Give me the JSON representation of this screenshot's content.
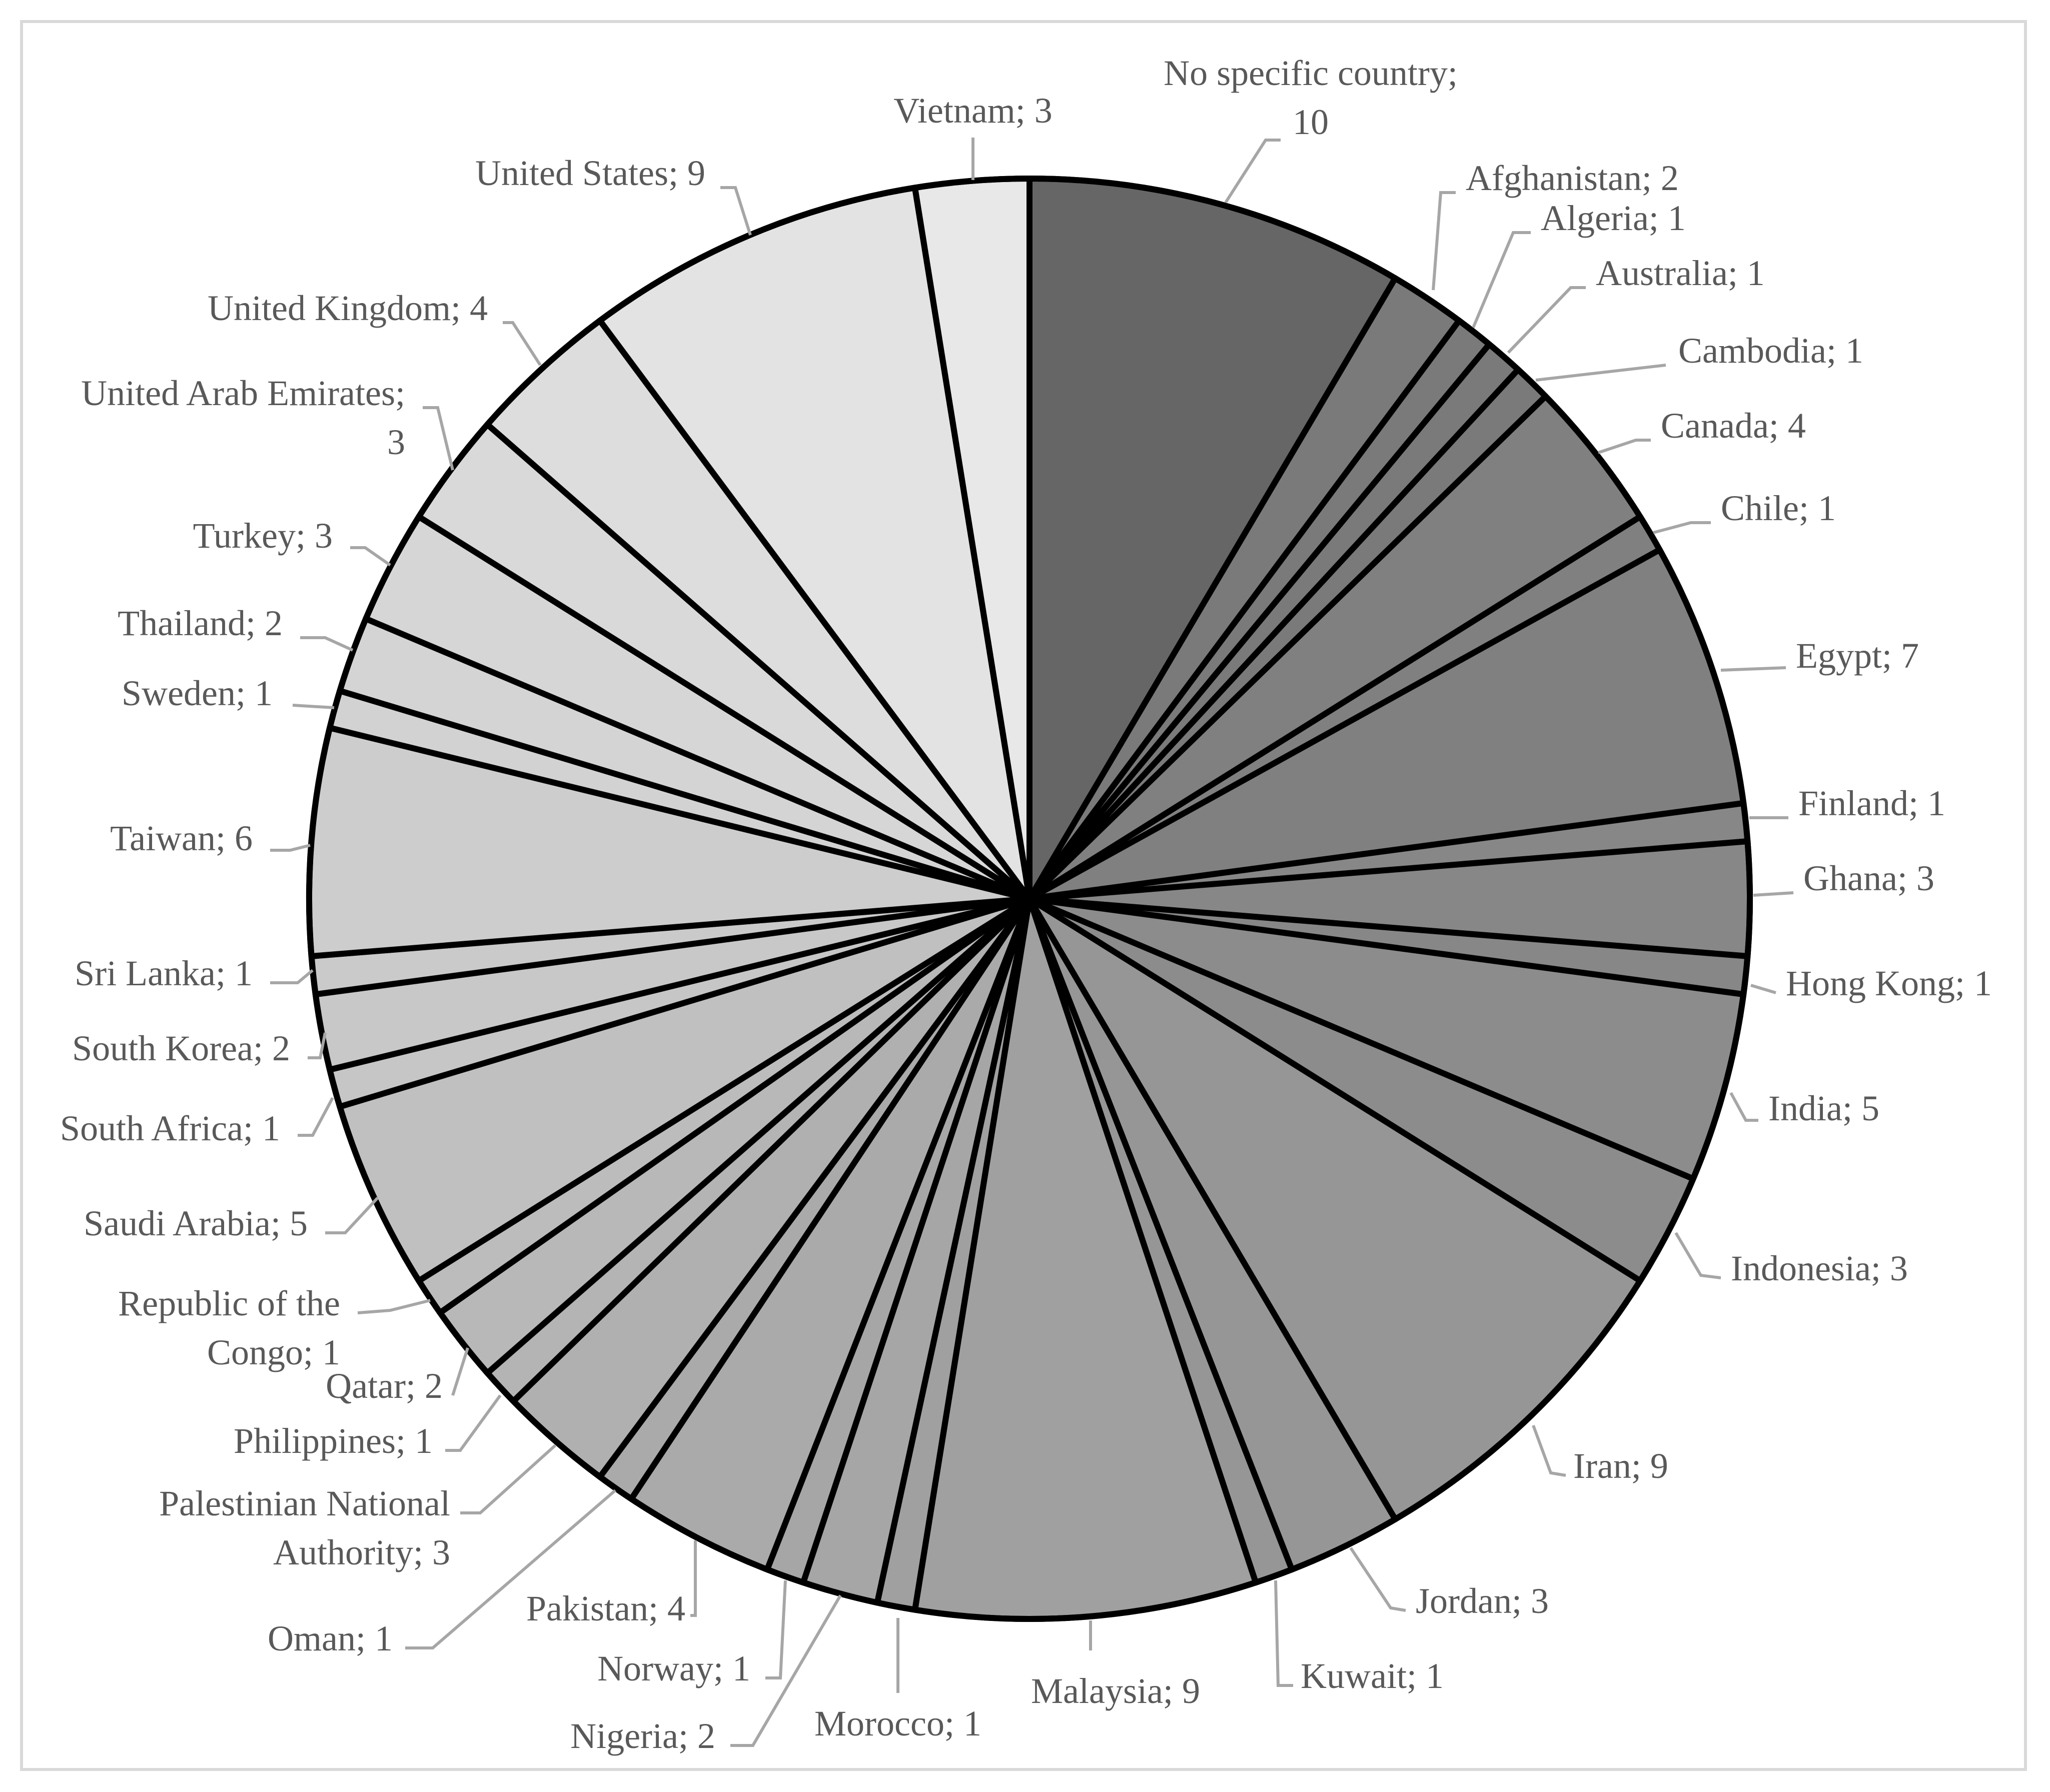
{
  "chart_data": {
    "type": "pie",
    "title": "",
    "start_angle": "12 o'clock, clockwise",
    "slices": [
      {
        "label": "No specific country",
        "value": 10,
        "color": "#666666",
        "text": [
          "No specific country;",
          "10"
        ]
      },
      {
        "label": "Afghanistan",
        "value": 2,
        "color": "#7a7a7a",
        "text": [
          "Afghanistan; 2"
        ]
      },
      {
        "label": "Algeria",
        "value": 1,
        "color": "#7a7a7a",
        "text": [
          "Algeria; 1"
        ]
      },
      {
        "label": "Australia",
        "value": 1,
        "color": "#7a7a7a",
        "text": [
          "Australia; 1"
        ]
      },
      {
        "label": "Cambodia",
        "value": 1,
        "color": "#7a7a7a",
        "text": [
          "Cambodia; 1"
        ]
      },
      {
        "label": "Canada",
        "value": 4,
        "color": "#808080",
        "text": [
          "Canada; 4"
        ]
      },
      {
        "label": "Chile",
        "value": 1,
        "color": "#808080",
        "text": [
          "Chile; 1"
        ]
      },
      {
        "label": "Egypt",
        "value": 7,
        "color": "#808080",
        "text": [
          "Egypt; 7"
        ]
      },
      {
        "label": "Finland",
        "value": 1,
        "color": "#878787",
        "text": [
          "Finland; 1"
        ]
      },
      {
        "label": "Ghana",
        "value": 3,
        "color": "#878787",
        "text": [
          "Ghana; 3"
        ]
      },
      {
        "label": "Hong Kong",
        "value": 1,
        "color": "#878787",
        "text": [
          "Hong Kong; 1"
        ]
      },
      {
        "label": "India",
        "value": 5,
        "color": "#8c8c8c",
        "text": [
          "India; 5"
        ]
      },
      {
        "label": "Indonesia",
        "value": 3,
        "color": "#8c8c8c",
        "text": [
          "Indonesia; 3"
        ]
      },
      {
        "label": "Iran",
        "value": 9,
        "color": "#969696",
        "text": [
          "Iran; 9"
        ]
      },
      {
        "label": "Jordan",
        "value": 3,
        "color": "#969696",
        "text": [
          "Jordan; 3"
        ]
      },
      {
        "label": "Kuwait",
        "value": 1,
        "color": "#969696",
        "text": [
          "Kuwait; 1"
        ]
      },
      {
        "label": "Malaysia",
        "value": 9,
        "color": "#a0a0a0",
        "text": [
          "Malaysia; 9"
        ]
      },
      {
        "label": "Morocco",
        "value": 1,
        "color": "#a0a0a0",
        "text": [
          "Morocco; 1"
        ]
      },
      {
        "label": "Nigeria",
        "value": 2,
        "color": "#a6a6a6",
        "text": [
          "Nigeria; 2"
        ]
      },
      {
        "label": "Norway",
        "value": 1,
        "color": "#a6a6a6",
        "text": [
          "Norway; 1"
        ]
      },
      {
        "label": "Pakistan",
        "value": 4,
        "color": "#aaaaaa",
        "text": [
          "Pakistan; 4"
        ]
      },
      {
        "label": "Oman",
        "value": 1,
        "color": "#aaaaaa",
        "text": [
          "Oman; 1"
        ]
      },
      {
        "label": "Palestinian National Authority",
        "value": 3,
        "color": "#b0b0b0",
        "text": [
          "Palestinian National",
          "Authority; 3"
        ]
      },
      {
        "label": "Philippines",
        "value": 1,
        "color": "#b4b4b4",
        "text": [
          "Philippines; 1"
        ]
      },
      {
        "label": "Qatar",
        "value": 2,
        "color": "#b8b8b8",
        "text": [
          "Qatar; 2"
        ]
      },
      {
        "label": "Republic of the Congo",
        "value": 1,
        "color": "#bcbcbc",
        "text": [
          "Republic of the",
          "Congo; 1"
        ]
      },
      {
        "label": "Saudi Arabia",
        "value": 5,
        "color": "#c0c0c0",
        "text": [
          "Saudi Arabia; 5"
        ]
      },
      {
        "label": "South Africa",
        "value": 1,
        "color": "#c6c6c6",
        "text": [
          "South Africa; 1"
        ]
      },
      {
        "label": "South Korea",
        "value": 2,
        "color": "#c8c8c8",
        "text": [
          "South Korea; 2"
        ]
      },
      {
        "label": "Sri Lanka",
        "value": 1,
        "color": "#cacaca",
        "text": [
          "Sri Lanka; 1"
        ]
      },
      {
        "label": "Taiwan",
        "value": 6,
        "color": "#cdcdcd",
        "text": [
          "Taiwan; 6"
        ]
      },
      {
        "label": "Sweden",
        "value": 1,
        "color": "#d2d2d2",
        "text": [
          "Sweden; 1"
        ]
      },
      {
        "label": "Thailand",
        "value": 2,
        "color": "#d4d4d4",
        "text": [
          "Thailand; 2"
        ]
      },
      {
        "label": "Turkey",
        "value": 3,
        "color": "#d6d6d6",
        "text": [
          "Turkey; 3"
        ]
      },
      {
        "label": "United Arab Emirates",
        "value": 3,
        "color": "#d9d9d9",
        "text": [
          "United Arab Emirates;",
          "3"
        ]
      },
      {
        "label": "United Kingdom",
        "value": 4,
        "color": "#dddddd",
        "text": [
          "United Kingdom; 4"
        ]
      },
      {
        "label": "United States",
        "value": 9,
        "color": "#e3e3e3",
        "text": [
          "United States; 9"
        ]
      },
      {
        "label": "Vietnam",
        "value": 3,
        "color": "#e8e8e8",
        "text": [
          "Vietnam; 3"
        ]
      }
    ]
  }
}
